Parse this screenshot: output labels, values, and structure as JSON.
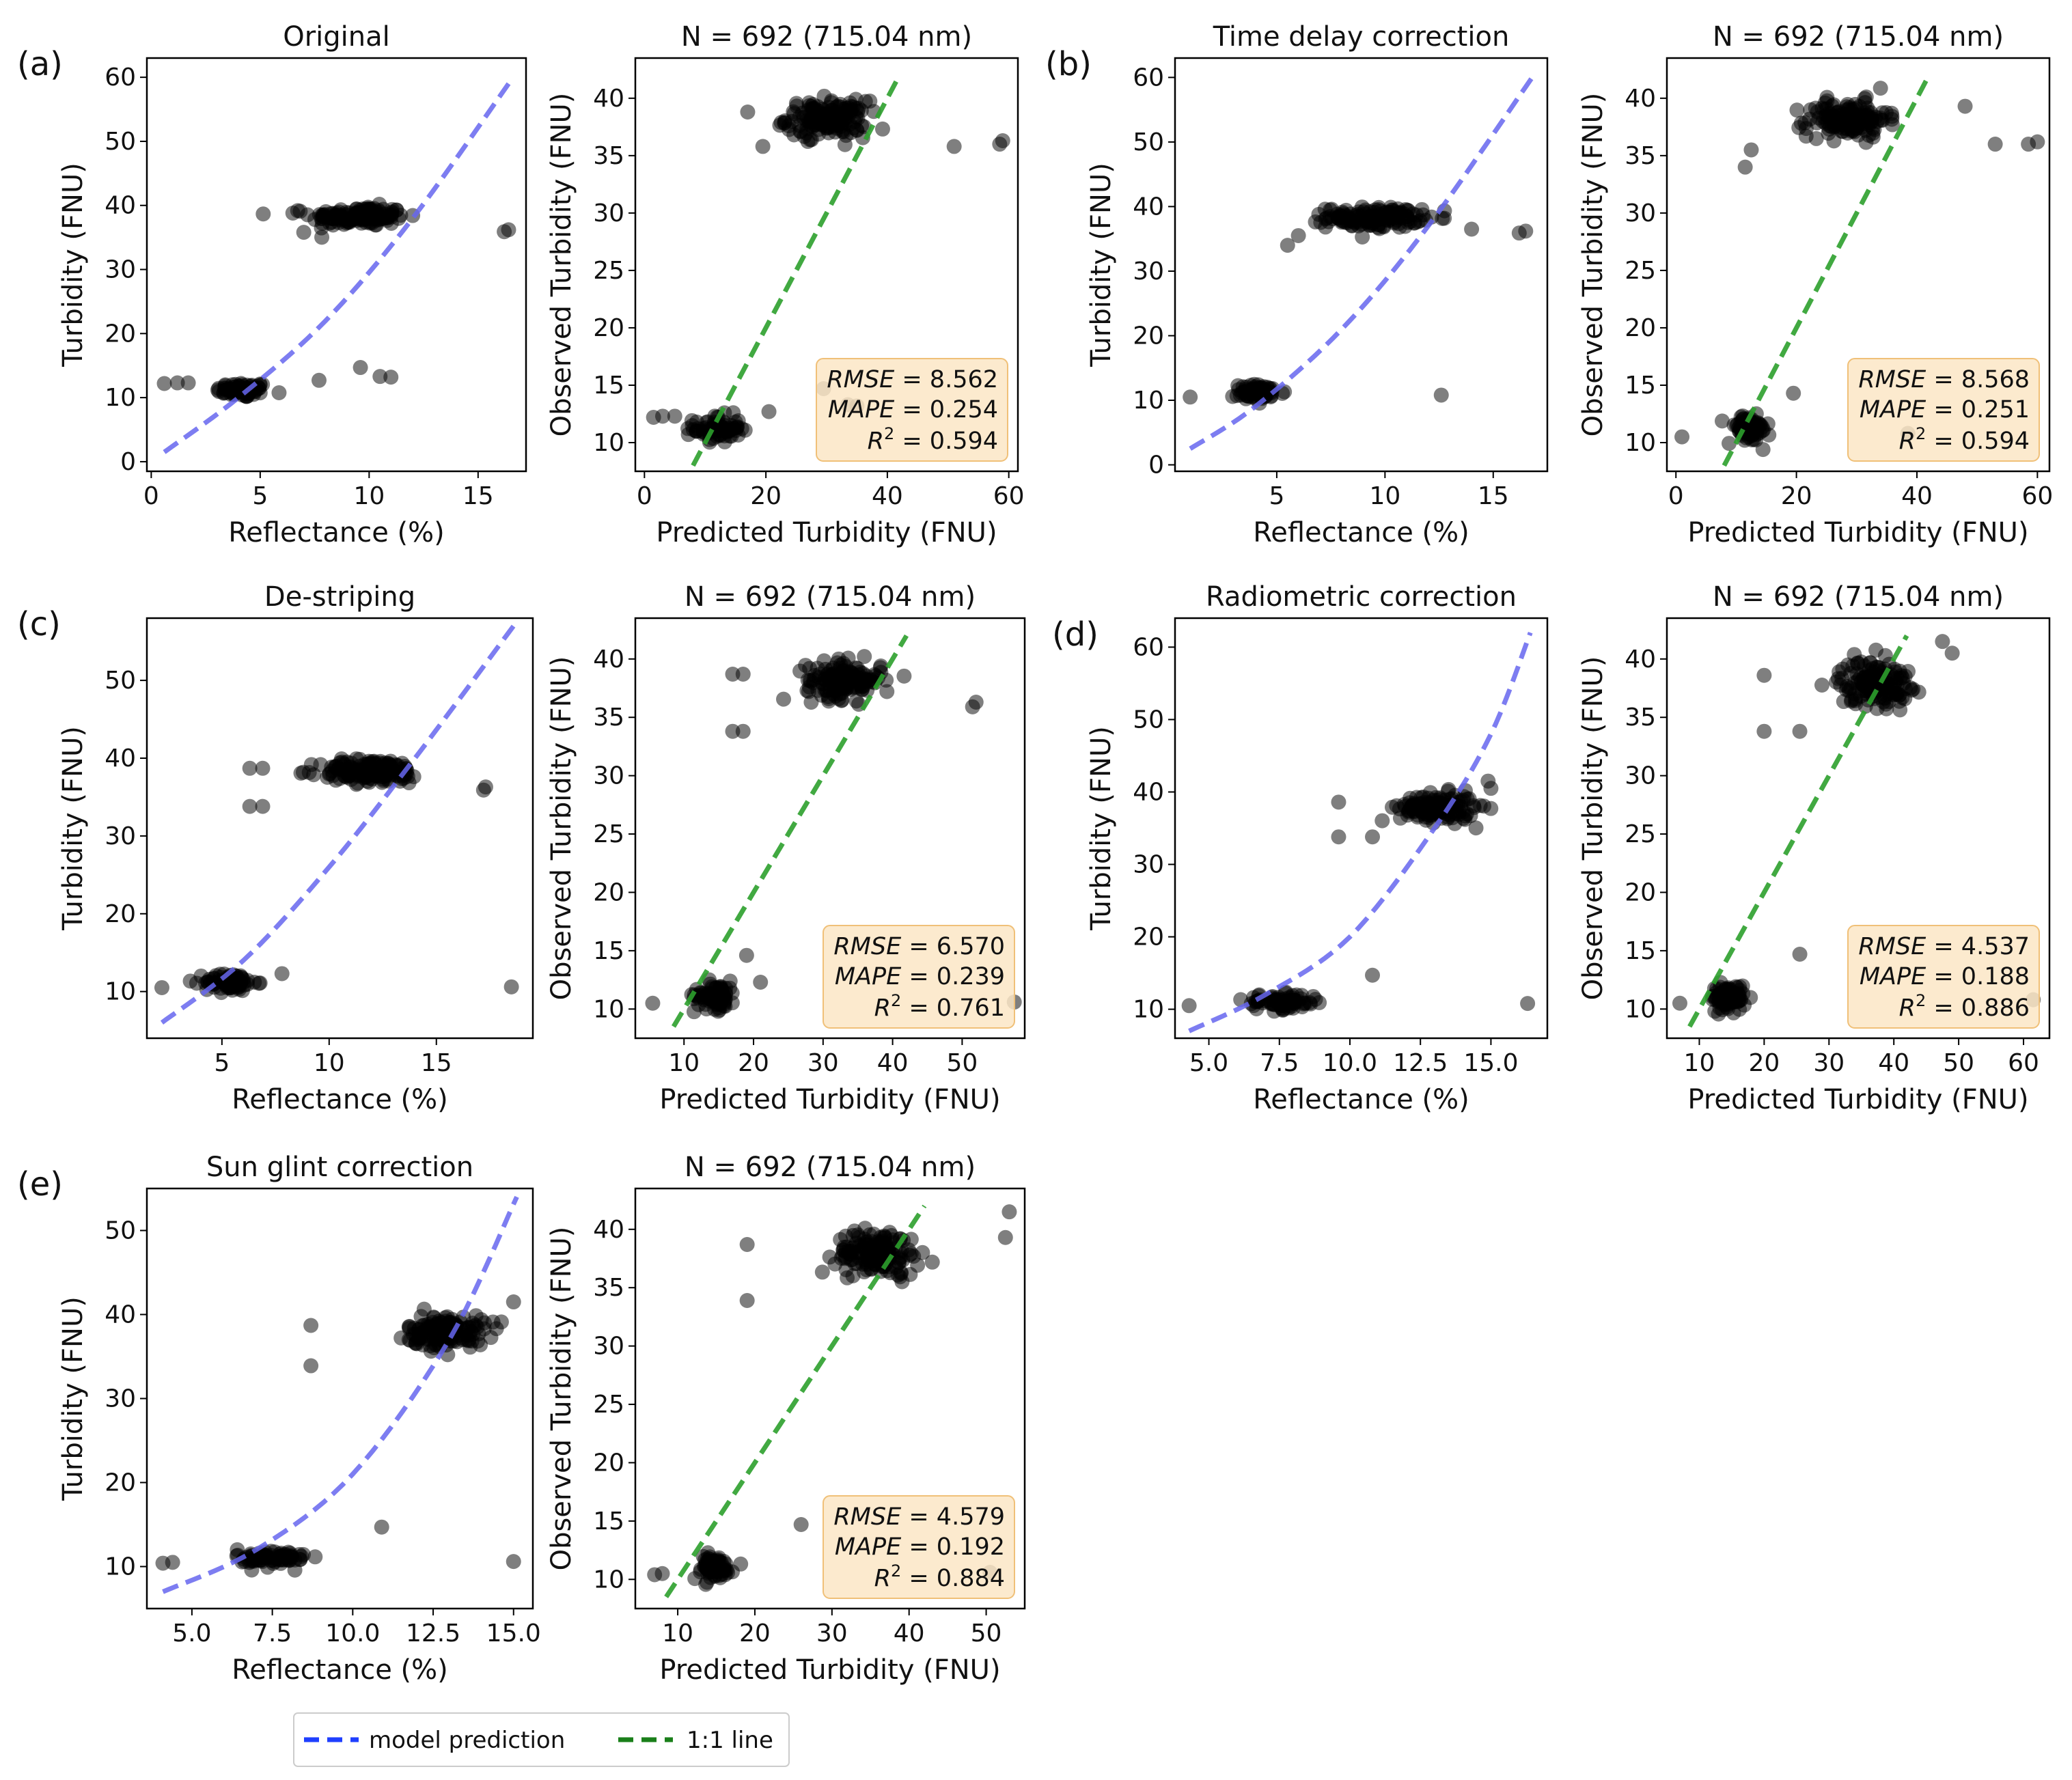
{
  "figure": {
    "panel_labels": [
      "(a)",
      "(b)",
      "(c)",
      "(d)",
      "(e)"
    ],
    "legend": {
      "items": [
        {
          "label": "model prediction",
          "color": "#6666ee"
        },
        {
          "label": "1:1 line",
          "color": "#2ca02c"
        }
      ]
    }
  },
  "chart_data": [
    {
      "type": "scatter",
      "panel": "(a)",
      "kind": "reflectance",
      "title": "Original",
      "xlabel": "Reflectance (%)",
      "ylabel": "Turbidity (FNU)",
      "xlim": [
        -0.2,
        17.2
      ],
      "ylim": [
        -1.5,
        63
      ],
      "xticks": [
        0,
        5,
        10,
        15
      ],
      "xtick_labels": [
        "0",
        "5",
        "10",
        "15"
      ],
      "yticks": [
        0,
        10,
        20,
        30,
        40,
        50,
        60
      ],
      "ytick_labels": [
        "0",
        "10",
        "20",
        "30",
        "40",
        "50",
        "60"
      ],
      "clusters": [
        {
          "cx": 4.2,
          "cy": 11.2,
          "sx": 1.0,
          "sy": 1.0,
          "n": 75
        },
        {
          "cx": 9.5,
          "cy": 38.3,
          "sx": 1.8,
          "sy": 1.3,
          "n": 150
        }
      ],
      "outliers": [
        [
          0.6,
          12.2
        ],
        [
          1.2,
          12.3
        ],
        [
          1.7,
          12.3
        ],
        [
          7.7,
          12.7
        ],
        [
          9.6,
          14.7
        ],
        [
          10.5,
          13.3
        ],
        [
          11.0,
          13.2
        ],
        [
          16.2,
          35.9
        ],
        [
          16.4,
          36.2
        ],
        [
          6.5,
          38.8
        ],
        [
          7.0,
          35.8
        ]
      ],
      "model_curve": [
        [
          0.6,
          1.5
        ],
        [
          4,
          10
        ],
        [
          8,
          22
        ],
        [
          12,
          38
        ],
        [
          16.4,
          59
        ]
      ],
      "stats": null
    },
    {
      "type": "scatter",
      "panel": "(a)",
      "kind": "predicted",
      "title": "N = 692 (715.04 nm)",
      "xlabel": "Predicted Turbidity (FNU)",
      "ylabel": "Observed Turbidity (FNU)",
      "xlim": [
        -1.5,
        61.5
      ],
      "ylim": [
        7.5,
        43.5
      ],
      "xticks": [
        0,
        20,
        40,
        60
      ],
      "xtick_labels": [
        "0",
        "20",
        "40",
        "60"
      ],
      "yticks": [
        10,
        15,
        20,
        25,
        30,
        35,
        40
      ],
      "ytick_labels": [
        "10",
        "15",
        "20",
        "25",
        "30",
        "35",
        "40"
      ],
      "clusters": [
        {
          "cx": 12.0,
          "cy": 11.2,
          "sx": 3.2,
          "sy": 1.0,
          "n": 75
        },
        {
          "cx": 30.0,
          "cy": 38.2,
          "sx": 5.5,
          "sy": 1.3,
          "n": 150
        }
      ],
      "outliers": [
        [
          1.5,
          12.2
        ],
        [
          3.0,
          12.3
        ],
        [
          5.0,
          12.3
        ],
        [
          20.5,
          12.7
        ],
        [
          29.5,
          14.7
        ],
        [
          33.5,
          13.3
        ],
        [
          35.0,
          13.2
        ],
        [
          58.5,
          36.0
        ],
        [
          59.0,
          36.3
        ],
        [
          17.0,
          38.8
        ],
        [
          19.5,
          35.8
        ],
        [
          51.0,
          35.8
        ]
      ],
      "model_curve": [
        [
          8,
          8
        ],
        [
          42,
          42
        ]
      ],
      "stats": {
        "rmse": "8.562",
        "mape": "0.254",
        "r2": "0.594"
      }
    },
    {
      "type": "scatter",
      "panel": "(b)",
      "kind": "reflectance",
      "title": "Time delay correction",
      "xlabel": "Reflectance (%)",
      "ylabel": "Turbidity (FNU)",
      "xlim": [
        0.3,
        17.5
      ],
      "ylim": [
        -1,
        63
      ],
      "xticks": [
        5,
        10,
        15
      ],
      "xtick_labels": [
        "5",
        "10",
        "15"
      ],
      "yticks": [
        0,
        10,
        20,
        30,
        40,
        50,
        60
      ],
      "ytick_labels": [
        "0",
        "10",
        "20",
        "30",
        "40",
        "50",
        "60"
      ],
      "clusters": [
        {
          "cx": 4.2,
          "cy": 11.2,
          "sx": 1.0,
          "sy": 1.0,
          "n": 75
        },
        {
          "cx": 9.5,
          "cy": 38.3,
          "sx": 1.8,
          "sy": 1.3,
          "n": 150
        }
      ],
      "outliers": [
        [
          1.0,
          10.5
        ],
        [
          12.6,
          10.8
        ],
        [
          5.5,
          34.0
        ],
        [
          6.0,
          35.5
        ],
        [
          16.2,
          35.9
        ],
        [
          16.5,
          36.2
        ],
        [
          14.0,
          36.5
        ]
      ],
      "model_curve": [
        [
          1.0,
          2.5
        ],
        [
          4,
          9
        ],
        [
          8,
          21
        ],
        [
          12,
          37
        ],
        [
          16.8,
          60
        ]
      ],
      "stats": null
    },
    {
      "type": "scatter",
      "panel": "(b)",
      "kind": "predicted",
      "title": "N = 692 (715.04 nm)",
      "xlabel": "Predicted Turbidity (FNU)",
      "ylabel": "Observed Turbidity (FNU)",
      "xlim": [
        -1.5,
        62
      ],
      "ylim": [
        7.5,
        43.5
      ],
      "xticks": [
        0,
        20,
        40,
        60
      ],
      "xtick_labels": [
        "0",
        "20",
        "40",
        "60"
      ],
      "yticks": [
        10,
        15,
        20,
        25,
        30,
        35,
        40
      ],
      "ytick_labels": [
        "10",
        "15",
        "20",
        "25",
        "30",
        "35",
        "40"
      ],
      "clusters": [
        {
          "cx": 12.0,
          "cy": 11.2,
          "sx": 3.0,
          "sy": 1.0,
          "n": 75
        },
        {
          "cx": 28.5,
          "cy": 38.2,
          "sx": 5.5,
          "sy": 1.3,
          "n": 150
        }
      ],
      "outliers": [
        [
          1.0,
          10.5
        ],
        [
          38.5,
          10.8
        ],
        [
          11.5,
          34.0
        ],
        [
          12.5,
          35.5
        ],
        [
          58.5,
          36.0
        ],
        [
          60.0,
          36.2
        ],
        [
          53.0,
          36.0
        ],
        [
          48.0,
          39.3
        ],
        [
          19.5,
          14.3
        ]
      ],
      "model_curve": [
        [
          8,
          8
        ],
        [
          42,
          42
        ]
      ],
      "stats": {
        "rmse": "8.568",
        "mape": "0.251",
        "r2": "0.594"
      }
    },
    {
      "type": "scatter",
      "panel": "(c)",
      "kind": "reflectance",
      "title": "De-striping",
      "xlabel": "Reflectance (%)",
      "ylabel": "Turbidity (FNU)",
      "xlim": [
        1.5,
        19.5
      ],
      "ylim": [
        4,
        58
      ],
      "xticks": [
        5,
        10,
        15
      ],
      "xtick_labels": [
        "5",
        "10",
        "15"
      ],
      "yticks": [
        10,
        20,
        30,
        40,
        50
      ],
      "ytick_labels": [
        "10",
        "20",
        "30",
        "40",
        "50"
      ],
      "clusters": [
        {
          "cx": 5.4,
          "cy": 11.2,
          "sx": 1.0,
          "sy": 1.0,
          "n": 80
        },
        {
          "cx": 12.0,
          "cy": 38.3,
          "sx": 2.0,
          "sy": 1.3,
          "n": 150
        }
      ],
      "outliers": [
        [
          2.2,
          10.5
        ],
        [
          18.5,
          10.6
        ],
        [
          6.3,
          38.7
        ],
        [
          6.9,
          38.7
        ],
        [
          6.3,
          33.8
        ],
        [
          6.9,
          33.8
        ],
        [
          17.2,
          35.9
        ],
        [
          17.3,
          36.3
        ],
        [
          7.8,
          12.3
        ]
      ],
      "model_curve": [
        [
          2.2,
          6
        ],
        [
          6,
          14
        ],
        [
          10,
          26
        ],
        [
          14,
          40
        ],
        [
          18.6,
          57
        ]
      ],
      "stats": null
    },
    {
      "type": "scatter",
      "panel": "(c)",
      "kind": "predicted",
      "title": "N = 692 (715.04 nm)",
      "xlabel": "Predicted Turbidity (FNU)",
      "ylabel": "Observed Turbidity (FNU)",
      "xlim": [
        3,
        59
      ],
      "ylim": [
        7.5,
        43.5
      ],
      "xticks": [
        10,
        20,
        30,
        40,
        50
      ],
      "xtick_labels": [
        "10",
        "20",
        "30",
        "40",
        "50"
      ],
      "yticks": [
        10,
        15,
        20,
        25,
        30,
        35,
        40
      ],
      "ytick_labels": [
        "10",
        "15",
        "20",
        "25",
        "30",
        "35",
        "40"
      ],
      "clusters": [
        {
          "cx": 14.5,
          "cy": 11.2,
          "sx": 2.5,
          "sy": 1.0,
          "n": 80
        },
        {
          "cx": 33.0,
          "cy": 38.2,
          "sx": 4.5,
          "sy": 1.3,
          "n": 150
        }
      ],
      "outliers": [
        [
          5.5,
          10.5
        ],
        [
          57.5,
          10.6
        ],
        [
          17.0,
          38.7
        ],
        [
          18.5,
          38.7
        ],
        [
          17.0,
          33.8
        ],
        [
          18.5,
          33.8
        ],
        [
          51.5,
          35.9
        ],
        [
          52.0,
          36.3
        ],
        [
          21.0,
          12.3
        ],
        [
          19.0,
          14.6
        ]
      ],
      "model_curve": [
        [
          8.5,
          8.5
        ],
        [
          42,
          42
        ]
      ],
      "stats": {
        "rmse": "6.570",
        "mape": "0.239",
        "r2": "0.761"
      }
    },
    {
      "type": "scatter",
      "panel": "(d)",
      "kind": "reflectance",
      "title": "Radiometric correction",
      "xlabel": "Reflectance (%)",
      "ylabel": "Turbidity (FNU)",
      "xlim": [
        3.8,
        17.0
      ],
      "ylim": [
        6,
        64
      ],
      "xticks": [
        5.0,
        7.5,
        10.0,
        12.5,
        15.0
      ],
      "xtick_labels": [
        "5.0",
        "7.5",
        "10.0",
        "12.5",
        "15.0"
      ],
      "yticks": [
        10,
        20,
        30,
        40,
        50,
        60
      ],
      "ytick_labels": [
        "10",
        "20",
        "30",
        "40",
        "50",
        "60"
      ],
      "clusters": [
        {
          "cx": 7.6,
          "cy": 11.0,
          "sx": 1.1,
          "sy": 0.9,
          "n": 80
        },
        {
          "cx": 13.1,
          "cy": 37.8,
          "sx": 1.1,
          "sy": 1.6,
          "n": 150
        }
      ],
      "outliers": [
        [
          4.3,
          10.5
        ],
        [
          16.3,
          10.8
        ],
        [
          9.6,
          38.6
        ],
        [
          9.6,
          33.8
        ],
        [
          10.8,
          33.8
        ],
        [
          10.8,
          14.7
        ],
        [
          14.9,
          41.5
        ],
        [
          15.0,
          40.5
        ]
      ],
      "model_curve": [
        [
          4.3,
          7
        ],
        [
          7,
          12
        ],
        [
          10,
          20
        ],
        [
          13,
          35
        ],
        [
          15,
          48
        ],
        [
          16.4,
          62
        ]
      ],
      "stats": null
    },
    {
      "type": "scatter",
      "panel": "(d)",
      "kind": "predicted",
      "title": "N = 692 (715.04 nm)",
      "xlabel": "Predicted Turbidity (FNU)",
      "ylabel": "Observed Turbidity (FNU)",
      "xlim": [
        5,
        64
      ],
      "ylim": [
        7.5,
        43.5
      ],
      "xticks": [
        10,
        20,
        30,
        40,
        50,
        60
      ],
      "xtick_labels": [
        "10",
        "20",
        "30",
        "40",
        "50",
        "60"
      ],
      "yticks": [
        10,
        15,
        20,
        25,
        30,
        35,
        40
      ],
      "ytick_labels": [
        "10",
        "15",
        "20",
        "25",
        "30",
        "35",
        "40"
      ],
      "clusters": [
        {
          "cx": 14.5,
          "cy": 11.0,
          "sx": 2.2,
          "sy": 0.9,
          "n": 80
        },
        {
          "cx": 37.0,
          "cy": 38.0,
          "sx": 4.5,
          "sy": 1.6,
          "n": 150
        }
      ],
      "outliers": [
        [
          7.0,
          10.5
        ],
        [
          61.5,
          10.8
        ],
        [
          20.0,
          38.6
        ],
        [
          20.0,
          33.8
        ],
        [
          25.5,
          33.8
        ],
        [
          25.5,
          14.7
        ],
        [
          47.5,
          41.5
        ],
        [
          49.0,
          40.5
        ]
      ],
      "model_curve": [
        [
          8.5,
          8.5
        ],
        [
          42,
          42
        ]
      ],
      "stats": {
        "rmse": "4.537",
        "mape": "0.188",
        "r2": "0.886"
      }
    },
    {
      "type": "scatter",
      "panel": "(e)",
      "kind": "reflectance",
      "title": "Sun glint correction",
      "xlabel": "Reflectance (%)",
      "ylabel": "Turbidity (FNU)",
      "xlim": [
        3.6,
        15.6
      ],
      "ylim": [
        5,
        55
      ],
      "xticks": [
        5.0,
        7.5,
        10.0,
        12.5,
        15.0
      ],
      "xtick_labels": [
        "5.0",
        "7.5",
        "10.0",
        "12.5",
        "15.0"
      ],
      "yticks": [
        10,
        20,
        30,
        40,
        50
      ],
      "ytick_labels": [
        "10",
        "20",
        "30",
        "40",
        "50"
      ],
      "clusters": [
        {
          "cx": 7.5,
          "cy": 11.0,
          "sx": 0.9,
          "sy": 0.9,
          "n": 80
        },
        {
          "cx": 12.9,
          "cy": 38.0,
          "sx": 1.0,
          "sy": 1.6,
          "n": 150
        }
      ],
      "outliers": [
        [
          4.1,
          10.4
        ],
        [
          4.4,
          10.5
        ],
        [
          15.0,
          10.6
        ],
        [
          8.7,
          38.7
        ],
        [
          8.7,
          33.9
        ],
        [
          10.9,
          14.7
        ],
        [
          15.0,
          41.5
        ]
      ],
      "model_curve": [
        [
          4.1,
          7
        ],
        [
          7,
          12
        ],
        [
          10,
          21
        ],
        [
          13,
          37
        ],
        [
          15.1,
          54
        ]
      ],
      "stats": null
    },
    {
      "type": "scatter",
      "panel": "(e)",
      "kind": "predicted",
      "title": "N = 692 (715.04 nm)",
      "xlabel": "Predicted Turbidity (FNU)",
      "ylabel": "Observed Turbidity (FNU)",
      "xlim": [
        4.5,
        55
      ],
      "ylim": [
        7.5,
        43.5
      ],
      "xticks": [
        10,
        20,
        30,
        40,
        50
      ],
      "xtick_labels": [
        "10",
        "20",
        "30",
        "40",
        "50"
      ],
      "yticks": [
        10,
        15,
        20,
        25,
        30,
        35,
        40
      ],
      "ytick_labels": [
        "10",
        "15",
        "20",
        "25",
        "30",
        "35",
        "40"
      ],
      "clusters": [
        {
          "cx": 14.5,
          "cy": 11.0,
          "sx": 2.2,
          "sy": 0.9,
          "n": 80
        },
        {
          "cx": 36.0,
          "cy": 38.0,
          "sx": 4.5,
          "sy": 1.6,
          "n": 150
        }
      ],
      "outliers": [
        [
          7.0,
          10.4
        ],
        [
          8.0,
          10.5
        ],
        [
          50.5,
          10.6
        ],
        [
          19.0,
          38.7
        ],
        [
          19.0,
          33.9
        ],
        [
          26.0,
          14.7
        ],
        [
          53.0,
          41.5
        ],
        [
          52.5,
          39.3
        ]
      ],
      "model_curve": [
        [
          8.5,
          8.5
        ],
        [
          42,
          42
        ]
      ],
      "stats": {
        "rmse": "4.579",
        "mape": "0.192",
        "r2": "0.884"
      }
    }
  ]
}
